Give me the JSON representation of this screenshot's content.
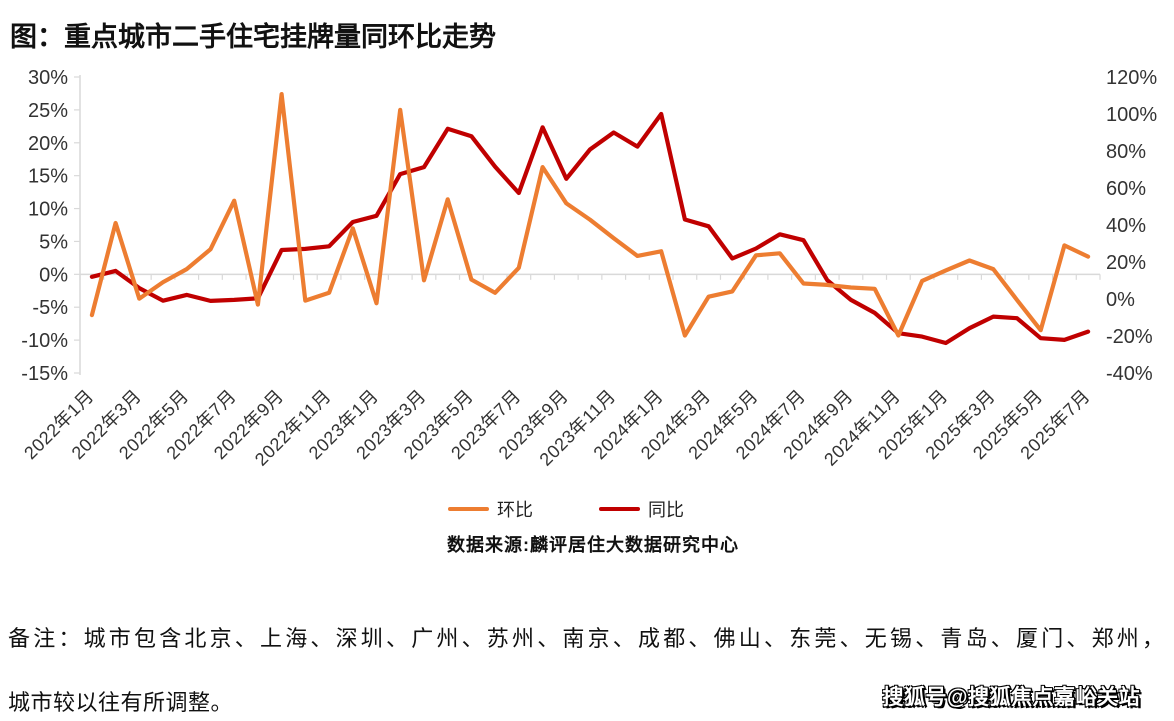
{
  "title": "图：重点城市二手住宅挂牌量同环比走势",
  "source": "数据来源:麟评居住大数据研究中心",
  "notes": [
    "备注：城市包含北京、上海、深圳、广州、苏州、南京、成都、佛山、东莞、无锡、青岛、厦门、郑州，",
    "城市较以往有所调整。"
  ],
  "watermark": "搜狐号@搜狐焦点嘉峪关站",
  "legend": [
    {
      "label": "环比",
      "color": "#ED7D31"
    },
    {
      "label": "同比",
      "color": "#C00000"
    }
  ],
  "chart_data": {
    "type": "line",
    "x_tick_labels": [
      "2022年1月",
      "2022年3月",
      "2022年5月",
      "2022年7月",
      "2022年9月",
      "2022年11月",
      "2023年1月",
      "2023年3月",
      "2023年5月",
      "2023年7月",
      "2023年9月",
      "2023年11月",
      "2024年1月",
      "2024年3月",
      "2024年5月",
      "2024年7月",
      "2024年9月",
      "2024年11月",
      "2025年1月",
      "2025年3月",
      "2025年5月",
      "2025年7月"
    ],
    "n_points": 43,
    "left_axis": {
      "ticks": [
        "30%",
        "25%",
        "20%",
        "15%",
        "10%",
        "5%",
        "0%",
        "-5%",
        "-10%",
        "-15%"
      ],
      "max": 30,
      "min": -15
    },
    "right_axis": {
      "ticks": [
        "120%",
        "100%",
        "80%",
        "60%",
        "40%",
        "20%",
        "0%",
        "-20%",
        "-40%"
      ],
      "max": 120,
      "min": -40
    },
    "series": [
      {
        "name": "环比",
        "axis": "left",
        "color": "#ED7D31",
        "values": [
          -6.2,
          7.8,
          -3.7,
          -1.2,
          0.8,
          3.8,
          11.2,
          -4.6,
          27.4,
          -4.0,
          -2.8,
          7.0,
          -4.4,
          25.0,
          -0.9,
          11.4,
          -0.8,
          -2.8,
          1.0,
          16.3,
          10.8,
          8.3,
          5.5,
          2.8,
          3.5,
          -9.3,
          -3.4,
          -2.6,
          2.9,
          3.2,
          -1.4,
          -1.6,
          -2.0,
          -2.2,
          -9.3,
          -1.0,
          0.6,
          2.1,
          0.8,
          -3.9,
          -8.5,
          4.4,
          2.7
        ]
      },
      {
        "name": "同比",
        "axis": "right",
        "color": "#C00000",
        "values": [
          12,
          15.2,
          5.9,
          -0.9,
          2.2,
          -1.0,
          -0.5,
          0.4,
          26.5,
          27.1,
          28.5,
          41.6,
          45,
          67.5,
          71.3,
          92,
          88,
          71.5,
          57.3,
          92.8,
          65,
          80.8,
          90,
          82.4,
          100,
          43,
          39.3,
          21.9,
          27.3,
          35,
          31.8,
          10.2,
          -0.5,
          -7.5,
          -18.5,
          -20.3,
          -23.8,
          -15.8,
          -9.5,
          -10.4,
          -21.2,
          -22.1,
          -17.6
        ]
      }
    ],
    "grid": "single horizontal line at left-axis 0%",
    "legend_position": "bottom-center"
  }
}
